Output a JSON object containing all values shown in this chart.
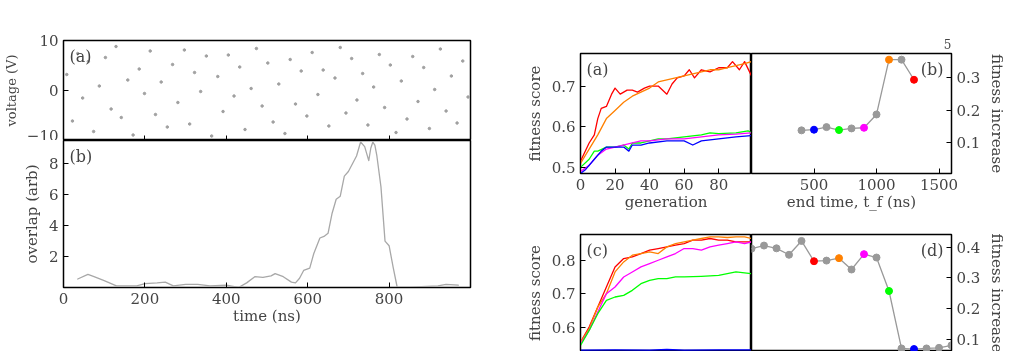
{
  "chart_data": [
    {
      "type": "scatter",
      "ylabel": "voltage (V)",
      "annotations": [
        "(a)"
      ],
      "xlim": [
        0,
        1000
      ],
      "ylim": [
        -10,
        10
      ],
      "xticks": [
        0,
        200,
        400,
        600,
        800
      ],
      "yticks": [
        -10,
        0,
        10
      ],
      "tick_labels": "y",
      "marker": "circle",
      "grid": false,
      "series": [
        {
          "color": "#a0a0a0",
          "x": [
            8,
            22,
            35,
            47,
            61,
            74,
            88,
            103,
            117,
            129,
            142,
            158,
            171,
            186,
            199,
            213,
            226,
            240,
            255,
            268,
            281,
            297,
            310,
            322,
            337,
            351,
            364,
            379,
            392,
            405,
            419,
            433,
            446,
            461,
            474,
            488,
            502,
            515,
            529,
            544,
            557,
            570,
            584,
            598,
            611,
            625,
            638,
            652,
            667,
            680,
            694,
            708,
            721,
            735,
            748,
            762,
            776,
            789,
            803,
            817,
            830,
            844,
            858,
            871,
            885,
            899,
            912,
            926,
            940,
            953,
            967,
            981,
            994
          ],
          "values": [
            3.2,
            -6.1,
            7.4,
            -1.5,
            5.8,
            -8.2,
            0.9,
            6.6,
            -3.7,
            8.8,
            -5.4,
            2.1,
            -8.9,
            4.3,
            -0.6,
            7.9,
            -4.8,
            1.7,
            -7.3,
            5.2,
            -2.4,
            8.1,
            -6.7,
            3.6,
            -0.2,
            6.9,
            -9.1,
            2.8,
            -4.2,
            7.1,
            -1.1,
            4.7,
            -7.8,
            0.4,
            8.4,
            -3.1,
            5.5,
            -6.3,
            1.3,
            -8.6,
            6.2,
            -2.7,
            3.9,
            -5.1,
            7.6,
            -0.8,
            4.1,
            -7.1,
            2.5,
            8.6,
            -4.5,
            6.4,
            -1.9,
            3.4,
            -6.9,
            0.7,
            7.2,
            -3.4,
            5.1,
            -8.4,
            1.9,
            -5.7,
            6.8,
            -2.2,
            4.6,
            -7.6,
            0.2,
            8.3,
            -4.1,
            2.9,
            -6.5,
            5.9,
            -1.3
          ]
        }
      ]
    },
    {
      "type": "line",
      "xlabel": "time (ns)",
      "ylabel": "overlap (arb)",
      "annotations": [
        "(b)"
      ],
      "xlim": [
        0,
        1000
      ],
      "ylim": [
        0,
        9.5
      ],
      "xticks": [
        0,
        200,
        400,
        600,
        800
      ],
      "yticks": [
        2,
        4,
        6,
        8
      ],
      "grid": false,
      "marker": "none",
      "series": [
        {
          "color": "#a8a8a8",
          "x": [
            35,
            60,
            75,
            100,
            130,
            150,
            180,
            200,
            230,
            250,
            270,
            300,
            330,
            360,
            400,
            430,
            450,
            470,
            490,
            510,
            520,
            540,
            560,
            570,
            580,
            590,
            605,
            615,
            630,
            640,
            650,
            660,
            670,
            680,
            690,
            700,
            710,
            720,
            730,
            740,
            750,
            755,
            760,
            765,
            770,
            780,
            790,
            800,
            810,
            820,
            850,
            880,
            920,
            940,
            970
          ],
          "values": [
            0.55,
            0.85,
            0.7,
            0.45,
            0.1,
            0.1,
            0.1,
            0.25,
            0.3,
            0.35,
            0.1,
            0.2,
            0.2,
            0.1,
            0.15,
            0.0,
            0.3,
            0.7,
            0.65,
            0.75,
            0.9,
            0.7,
            0.35,
            0.3,
            0.6,
            1.1,
            1.25,
            2.2,
            3.2,
            3.3,
            3.5,
            4.8,
            5.7,
            5.9,
            7.2,
            7.5,
            8.0,
            8.5,
            9.4,
            9.1,
            8.2,
            9.0,
            9.4,
            9.2,
            8.5,
            6.5,
            3.0,
            2.7,
            1.3,
            0.0,
            0.0,
            0.05,
            0.1,
            0.2,
            0.15
          ]
        }
      ]
    },
    {
      "type": "line",
      "xlabel": "generation",
      "ylabel": "fitness score",
      "annotations": [
        "(a)"
      ],
      "xlim": [
        0,
        99
      ],
      "ylim": [
        0.485,
        0.78
      ],
      "xticks": [
        0,
        20,
        40,
        60,
        80
      ],
      "yticks": [
        0.5,
        0.6,
        0.7
      ],
      "grid": false,
      "marker": "none",
      "series": [
        {
          "color": "#ff0000",
          "x": [
            0,
            5,
            8,
            10,
            12,
            15,
            18,
            20,
            23,
            27,
            30,
            33,
            37,
            40,
            45,
            50,
            53,
            56,
            60,
            63,
            66,
            70,
            75,
            80,
            85,
            88,
            92,
            95,
            99
          ],
          "values": [
            0.515,
            0.56,
            0.58,
            0.62,
            0.645,
            0.65,
            0.68,
            0.695,
            0.68,
            0.69,
            0.69,
            0.685,
            0.695,
            0.7,
            0.7,
            0.68,
            0.705,
            0.72,
            0.725,
            0.74,
            0.72,
            0.74,
            0.735,
            0.745,
            0.745,
            0.76,
            0.74,
            0.76,
            0.725
          ]
        },
        {
          "color": "#ff8000",
          "x": [
            0,
            5,
            10,
            15,
            20,
            25,
            30,
            35,
            40,
            45,
            50,
            55,
            60,
            65,
            70,
            75,
            80,
            85,
            90,
            95,
            99
          ],
          "values": [
            0.51,
            0.545,
            0.58,
            0.62,
            0.64,
            0.66,
            0.675,
            0.685,
            0.695,
            0.71,
            0.715,
            0.72,
            0.725,
            0.73,
            0.735,
            0.74,
            0.74,
            0.745,
            0.75,
            0.755,
            0.76
          ]
        },
        {
          "color": "#00ff00",
          "x": [
            0,
            5,
            8,
            10,
            15,
            20,
            25,
            28,
            30,
            35,
            40,
            45,
            50,
            60,
            70,
            75,
            80,
            90,
            97,
            99
          ],
          "values": [
            0.5,
            0.52,
            0.54,
            0.54,
            0.55,
            0.55,
            0.555,
            0.545,
            0.56,
            0.56,
            0.565,
            0.57,
            0.57,
            0.575,
            0.58,
            0.585,
            0.583,
            0.585,
            0.59,
            0.585
          ]
        },
        {
          "color": "#ff00ff",
          "x": [
            0,
            5,
            10,
            15,
            20,
            30,
            35,
            40,
            50,
            60,
            70,
            80,
            90,
            99
          ],
          "values": [
            0.49,
            0.505,
            0.53,
            0.545,
            0.55,
            0.56,
            0.565,
            0.565,
            0.57,
            0.57,
            0.575,
            0.58,
            0.582,
            0.585
          ]
        },
        {
          "color": "#0000ff",
          "x": [
            0,
            3,
            8,
            12,
            15,
            20,
            25,
            28,
            30,
            35,
            40,
            50,
            60,
            65,
            70,
            80,
            90,
            99
          ],
          "values": [
            0.485,
            0.495,
            0.52,
            0.54,
            0.55,
            0.55,
            0.55,
            0.54,
            0.555,
            0.555,
            0.56,
            0.565,
            0.565,
            0.555,
            0.565,
            0.57,
            0.575,
            0.578
          ]
        }
      ]
    },
    {
      "type": "line",
      "xlabel": "end time, t_f (ns)",
      "y2label": "fitness increase",
      "annotations": [
        "(b)",
        "5"
      ],
      "xlim": [
        0,
        1600
      ],
      "y2lim": [
        0.005,
        0.375
      ],
      "xticks": [
        500,
        1000,
        1500
      ],
      "y2ticks": [
        0.1,
        0.2,
        0.3
      ],
      "grid": false,
      "marker": "circle",
      "series": [
        {
          "axis": "y2",
          "color": "#999999",
          "colors": [
            "#999999",
            "#0000ff",
            "#999999",
            "#00ff00",
            "#999999",
            "#ff00ff",
            "#999999",
            "#ff8000",
            "#999999",
            "#ff0000"
          ],
          "x": [
            400,
            500,
            600,
            700,
            800,
            900,
            1000,
            1100,
            1200,
            1300
          ],
          "values": [
            0.138,
            0.14,
            0.148,
            0.139,
            0.144,
            0.146,
            0.187,
            0.356,
            0.356,
            0.294
          ]
        }
      ]
    },
    {
      "type": "line",
      "ylabel": "fitness score",
      "annotations": [
        "(c)"
      ],
      "xlim": [
        0,
        99
      ],
      "ylim": [
        0.527,
        0.877
      ],
      "yticks": [
        0.6,
        0.7,
        0.8
      ],
      "tick_labels": "y",
      "grid": false,
      "marker": "none",
      "series": [
        {
          "color": "#ff0000",
          "x": [
            0,
            5,
            10,
            15,
            20,
            25,
            30,
            35,
            40,
            45,
            50,
            55,
            60,
            65,
            70,
            75,
            80,
            85,
            90,
            95,
            99
          ],
          "values": [
            0.555,
            0.6,
            0.66,
            0.72,
            0.78,
            0.805,
            0.81,
            0.82,
            0.83,
            0.835,
            0.84,
            0.845,
            0.85,
            0.86,
            0.86,
            0.865,
            0.86,
            0.86,
            0.855,
            0.855,
            0.855
          ]
        },
        {
          "color": "#ff8000",
          "x": [
            0,
            5,
            10,
            15,
            20,
            25,
            30,
            35,
            40,
            45,
            50,
            55,
            60,
            65,
            70,
            75,
            80,
            85,
            90,
            95,
            99
          ],
          "values": [
            0.555,
            0.595,
            0.66,
            0.7,
            0.765,
            0.795,
            0.815,
            0.82,
            0.825,
            0.82,
            0.84,
            0.85,
            0.855,
            0.86,
            0.865,
            0.87,
            0.87,
            0.868,
            0.87,
            0.87,
            0.865
          ]
        },
        {
          "color": "#ff00ff",
          "x": [
            0,
            5,
            10,
            15,
            20,
            25,
            30,
            35,
            40,
            45,
            50,
            55,
            60,
            65,
            70,
            75,
            80,
            85,
            90,
            95,
            99
          ],
          "values": [
            0.55,
            0.59,
            0.645,
            0.7,
            0.72,
            0.75,
            0.765,
            0.78,
            0.79,
            0.8,
            0.81,
            0.82,
            0.835,
            0.835,
            0.83,
            0.84,
            0.845,
            0.85,
            0.855,
            0.85,
            0.855
          ]
        },
        {
          "color": "#00ff00",
          "x": [
            0,
            5,
            10,
            15,
            20,
            25,
            30,
            35,
            40,
            45,
            50,
            55,
            60,
            70,
            80,
            90,
            99
          ],
          "values": [
            0.545,
            0.59,
            0.64,
            0.68,
            0.69,
            0.695,
            0.71,
            0.73,
            0.74,
            0.745,
            0.745,
            0.75,
            0.75,
            0.752,
            0.755,
            0.765,
            0.76
          ]
        },
        {
          "color": "#0000ff",
          "x": [
            0,
            20,
            40,
            50,
            60,
            80,
            99
          ],
          "values": [
            0.531,
            0.532,
            0.531,
            0.533,
            0.531,
            0.532,
            0.532
          ]
        }
      ]
    },
    {
      "type": "line",
      "y2label": "fitness increase",
      "annotations": [
        "(d)"
      ],
      "xlim": [
        0,
        1600
      ],
      "y2lim": [
        0.06,
        0.441
      ],
      "y2ticks": [
        0.1,
        0.2,
        0.3,
        0.4
      ],
      "tick_labels": "y",
      "grid": false,
      "marker": "circle",
      "series": [
        {
          "axis": "y2",
          "color": "#999999",
          "colors": [
            "#999999",
            "#999999",
            "#999999",
            "#999999",
            "#999999",
            "#ff0000",
            "#999999",
            "#ff8000",
            "#999999",
            "#ff00ff",
            "#999999",
            "#00ff00",
            "#999999",
            "#0000ff",
            "#999999",
            "#999999",
            "#999999"
          ],
          "x": [
            0,
            100,
            200,
            300,
            400,
            500,
            600,
            700,
            800,
            900,
            1000,
            1100,
            1200,
            1300,
            1400,
            1500,
            1600
          ],
          "values": [
            0.395,
            0.405,
            0.396,
            0.375,
            0.42,
            0.354,
            0.356,
            0.364,
            0.327,
            0.377,
            0.366,
            0.257,
            0.07,
            0.068,
            0.07,
            0.072,
            0.08
          ]
        }
      ]
    }
  ]
}
